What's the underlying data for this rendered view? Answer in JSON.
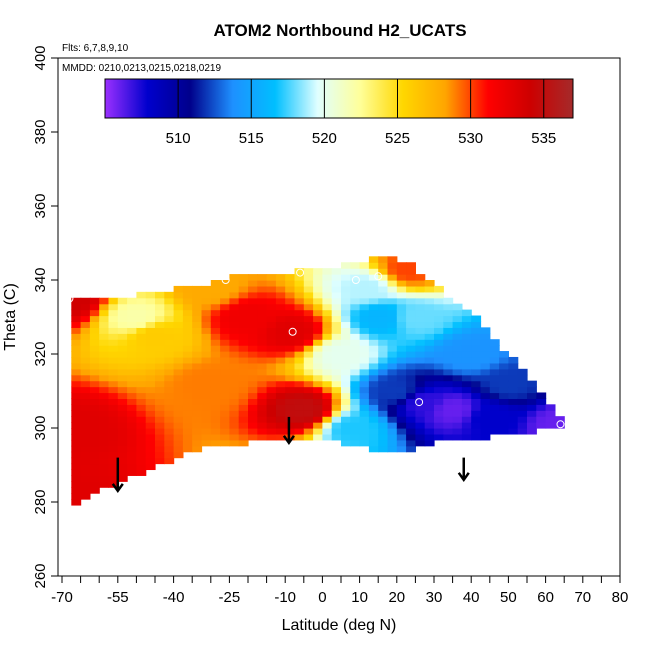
{
  "chart_data": {
    "type": "heatmap",
    "title": "ATOM2 Northbound H2_UCATS",
    "annotations": [
      "Flts: 6,7,8,9,10",
      "MMDD: 0210,0213,0215,0218,0219"
    ],
    "xlabel": "Latitude (deg N)",
    "ylabel": "Theta (C)",
    "xlim": [
      -70,
      80
    ],
    "ylim": [
      260,
      400
    ],
    "x_ticks": [
      -70,
      -55,
      -40,
      -25,
      -10,
      0,
      10,
      20,
      30,
      40,
      50,
      60,
      70,
      80
    ],
    "x_tick_labels": [
      "-70",
      "-55",
      "-40",
      "-25",
      "-10",
      "0",
      "10",
      "20",
      "30",
      "40",
      "50",
      "60",
      "70",
      "80"
    ],
    "y_ticks": [
      260,
      280,
      300,
      320,
      340,
      360,
      380,
      400
    ],
    "y_tick_labels": [
      "260",
      "280",
      "300",
      "320",
      "340",
      "360",
      "380",
      "400"
    ],
    "colorbar": {
      "range": [
        505,
        537
      ],
      "ticks": [
        510,
        515,
        520,
        525,
        530,
        535
      ],
      "tick_labels": [
        "510",
        "515",
        "520",
        "525",
        "530",
        "535"
      ],
      "colors": [
        "#9b30ff",
        "#0000cd",
        "#00008b",
        "#1e90ff",
        "#00bfff",
        "#e0ffff",
        "#ffff99",
        "#ffd700",
        "#ffa500",
        "#ff0000",
        "#cd0000",
        "#a52a2a"
      ]
    },
    "field_control_points": [
      {
        "x": -68,
        "y": 335,
        "v": 534
      },
      {
        "x": -67,
        "y": 300,
        "v": 533
      },
      {
        "x": -67,
        "y": 280,
        "v": 533
      },
      {
        "x": -50,
        "y": 330,
        "v": 522
      },
      {
        "x": -45,
        "y": 325,
        "v": 526
      },
      {
        "x": -30,
        "y": 312,
        "v": 529
      },
      {
        "x": -20,
        "y": 330,
        "v": 532
      },
      {
        "x": -8,
        "y": 326,
        "v": 533
      },
      {
        "x": -5,
        "y": 305,
        "v": 535
      },
      {
        "x": -30,
        "y": 338,
        "v": 528
      },
      {
        "x": 5,
        "y": 320,
        "v": 520
      },
      {
        "x": 12,
        "y": 338,
        "v": 519
      },
      {
        "x": 16,
        "y": 330,
        "v": 516
      },
      {
        "x": 20,
        "y": 310,
        "v": 512
      },
      {
        "x": 8,
        "y": 300,
        "v": 517
      },
      {
        "x": 25,
        "y": 330,
        "v": 518
      },
      {
        "x": 23,
        "y": 343,
        "v": 530
      },
      {
        "x": 27,
        "y": 307,
        "v": 507
      },
      {
        "x": 35,
        "y": 305,
        "v": 506
      },
      {
        "x": 45,
        "y": 303,
        "v": 508
      },
      {
        "x": 40,
        "y": 320,
        "v": 514
      },
      {
        "x": 64,
        "y": 301,
        "v": 506
      },
      {
        "x": 50,
        "y": 312,
        "v": 512
      }
    ],
    "coverage_region_x": [
      -68,
      -68,
      -55,
      -45,
      -30,
      -25,
      -10,
      -5,
      0,
      5,
      10,
      15,
      20,
      23,
      25,
      30,
      40,
      50,
      60,
      65,
      64,
      50,
      40,
      30,
      25,
      20,
      15,
      10,
      0,
      -10,
      -20,
      -35,
      -45,
      -55,
      -62,
      -68
    ],
    "coverage_region_theta": [
      278,
      335,
      335,
      337,
      339,
      341,
      342,
      343,
      343,
      344,
      345,
      346,
      346,
      345,
      343,
      339,
      331,
      320,
      309,
      301,
      300,
      298,
      297,
      296,
      294,
      293,
      293,
      295,
      297,
      297,
      296,
      294,
      289,
      285,
      282,
      278
    ],
    "sample_markers": [
      {
        "x": -68,
        "y": 335
      },
      {
        "x": -26,
        "y": 340
      },
      {
        "x": -8,
        "y": 326
      },
      {
        "x": -6,
        "y": 342
      },
      {
        "x": 9,
        "y": 340
      },
      {
        "x": 15,
        "y": 341
      },
      {
        "x": 26,
        "y": 307
      },
      {
        "x": 64,
        "y": 301
      },
      {
        "x": -67,
        "y": 277
      }
    ],
    "arrows": [
      {
        "x": -55,
        "y_top": 292,
        "y_bottom": 283
      },
      {
        "x": -9,
        "y_top": 303,
        "y_bottom": 296
      },
      {
        "x": 38,
        "y_top": 292,
        "y_bottom": 286
      }
    ]
  }
}
